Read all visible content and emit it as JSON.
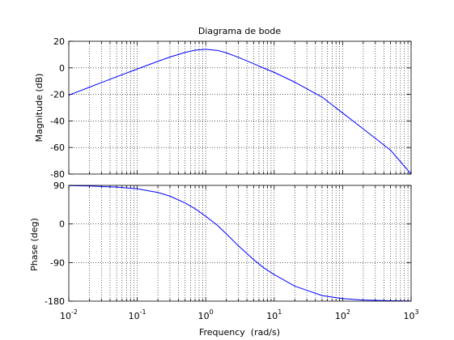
{
  "chart_data": [
    {
      "type": "line",
      "title": "Diagrama de bode",
      "xlabel": "",
      "ylabel": "Magnitude (dB)",
      "xscale": "log",
      "xlim": [
        0.01,
        1000
      ],
      "ylim": [
        -80,
        20
      ],
      "yticks": [
        20,
        0,
        -20,
        -40,
        -60,
        -80
      ],
      "grid": true,
      "color": "#0000ff",
      "series": [
        {
          "x": [
            0.01,
            0.02,
            0.05,
            0.1,
            0.2,
            0.3,
            0.5,
            0.7,
            1,
            1.5,
            2,
            3,
            5,
            7,
            10,
            20,
            50,
            100,
            200,
            500,
            1000
          ],
          "values": [
            -20.6,
            -14.6,
            -6.7,
            -0.9,
            4.9,
            8.1,
            11.6,
            13.3,
            14.0,
            13.1,
            11.3,
            7.9,
            3.1,
            -0.2,
            -3.4,
            -10.8,
            -22.0,
            -34.0,
            -46.0,
            -62.0,
            -80.0
          ]
        }
      ]
    },
    {
      "type": "line",
      "xlabel": "Frequency  (rad/s)",
      "ylabel": "Phase (deg)",
      "xscale": "log",
      "xlim": [
        0.01,
        1000
      ],
      "ylim": [
        -180,
        90
      ],
      "yticks": [
        90,
        0,
        -90,
        -180
      ],
      "xticks": [
        "10^-2",
        "10^-1",
        "10^0",
        "10^1",
        "10^2",
        "10^3"
      ],
      "grid": true,
      "color": "#0000ff",
      "series": [
        {
          "x": [
            0.01,
            0.02,
            0.05,
            0.1,
            0.2,
            0.3,
            0.5,
            0.7,
            1,
            1.5,
            2,
            3,
            5,
            7,
            10,
            20,
            50,
            100,
            200,
            500,
            1000
          ],
          "values": [
            89.5,
            88.5,
            86.0,
            82.0,
            73.5,
            65.0,
            49.0,
            35.5,
            18.0,
            -4.0,
            -23.0,
            -51.0,
            -83.0,
            -102.0,
            -118.0,
            -145.0,
            -167.0,
            -174.0,
            -177.5,
            -179.0,
            -179.7
          ]
        }
      ]
    }
  ]
}
